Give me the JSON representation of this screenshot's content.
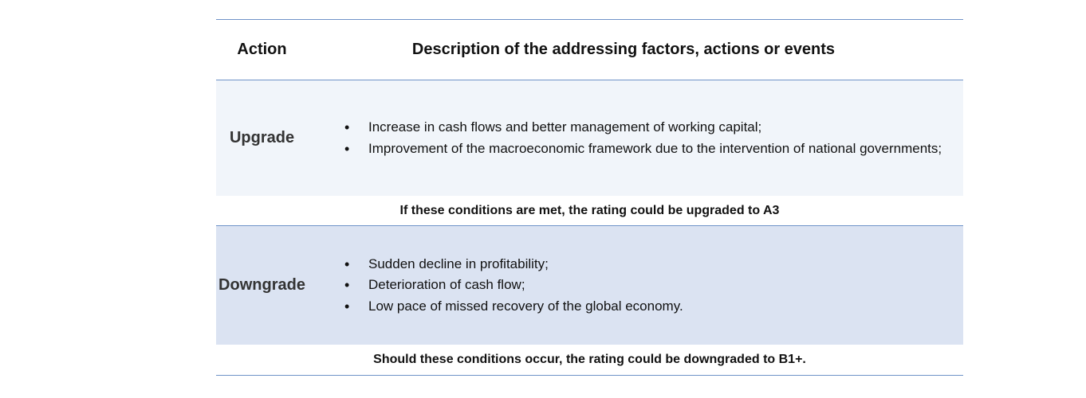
{
  "header": {
    "action": "Action",
    "description": "Description of the addressing factors, actions or events"
  },
  "upgrade": {
    "label": "Upgrade",
    "items": [
      "Increase in cash flows and better management of working capital;",
      "Improvement of the macroeconomic framework due to the intervention of national governments;"
    ],
    "condition": "If these conditions are met, the rating could be upgraded to A3"
  },
  "downgrade": {
    "label": "Downgrade",
    "items": [
      "Sudden decline in profitability;",
      "Deterioration of cash flow;",
      "Low pace of missed recovery of the global economy."
    ],
    "condition": "Should these conditions occur, the rating could be downgraded to B1+."
  },
  "colors": {
    "rule": "#6f93c8",
    "upgrade_bg": "#f1f5fa",
    "downgrade_bg": "#dbe3f2"
  }
}
